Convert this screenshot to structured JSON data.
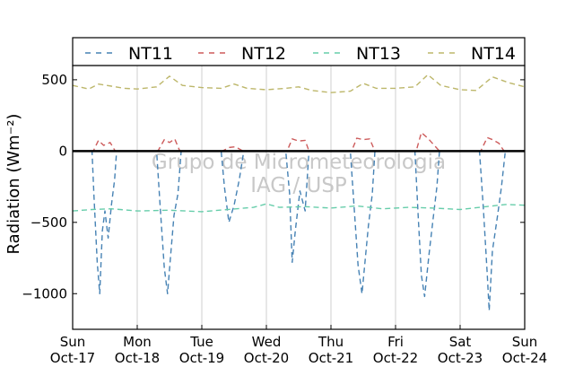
{
  "chart_data": {
    "type": "line",
    "ylabel": "Radiation (Wm⁻²)",
    "ylim": [
      -1250,
      600
    ],
    "yticks": [
      -1000,
      -500,
      0,
      500
    ],
    "ytick_labels": [
      "−1000",
      "−500",
      "0",
      "500"
    ],
    "xlim": [
      0,
      7
    ],
    "xticks": [
      {
        "day": "Sun",
        "date": "Oct-17"
      },
      {
        "day": "Mon",
        "date": "Oct-18"
      },
      {
        "day": "Tue",
        "date": "Oct-19"
      },
      {
        "day": "Wed",
        "date": "Oct-20"
      },
      {
        "day": "Thu",
        "date": "Oct-21"
      },
      {
        "day": "Fri",
        "date": "Oct-22"
      },
      {
        "day": "Sat",
        "date": "Oct-23"
      },
      {
        "day": "Sun",
        "date": "Oct-24"
      }
    ],
    "grid": "vertical",
    "legend_position": "top",
    "watermark": [
      "Grupo de Micrometeorologia",
      "IAG / USP"
    ],
    "series": [
      {
        "name": "NT11",
        "color": "#4682b4",
        "points": [
          [
            0,
            0
          ],
          [
            0.3,
            0
          ],
          [
            0.33,
            -320
          ],
          [
            0.38,
            -780
          ],
          [
            0.42,
            -1000
          ],
          [
            0.46,
            -560
          ],
          [
            0.5,
            -420
          ],
          [
            0.55,
            -610
          ],
          [
            0.6,
            -380
          ],
          [
            0.65,
            -200
          ],
          [
            0.68,
            0
          ],
          [
            1.3,
            0
          ],
          [
            1.36,
            -420
          ],
          [
            1.42,
            -820
          ],
          [
            1.47,
            -1000
          ],
          [
            1.52,
            -720
          ],
          [
            1.57,
            -450
          ],
          [
            1.63,
            -300
          ],
          [
            1.68,
            0
          ],
          [
            2.3,
            0
          ],
          [
            2.35,
            -250
          ],
          [
            2.42,
            -500
          ],
          [
            2.5,
            -380
          ],
          [
            2.58,
            -200
          ],
          [
            2.65,
            0
          ],
          [
            3.3,
            0
          ],
          [
            3.36,
            -300
          ],
          [
            3.4,
            -780
          ],
          [
            3.45,
            -550
          ],
          [
            3.52,
            -280
          ],
          [
            3.6,
            -420
          ],
          [
            3.66,
            0
          ],
          [
            4.3,
            0
          ],
          [
            4.36,
            -400
          ],
          [
            4.42,
            -800
          ],
          [
            4.48,
            -1000
          ],
          [
            4.53,
            -760
          ],
          [
            4.58,
            -520
          ],
          [
            4.64,
            -300
          ],
          [
            4.68,
            0
          ],
          [
            5.3,
            0
          ],
          [
            5.35,
            -450
          ],
          [
            5.4,
            -870
          ],
          [
            5.45,
            -1020
          ],
          [
            5.52,
            -720
          ],
          [
            5.58,
            -480
          ],
          [
            5.64,
            -250
          ],
          [
            5.68,
            0
          ],
          [
            6.3,
            0
          ],
          [
            6.36,
            -400
          ],
          [
            6.42,
            -860
          ],
          [
            6.45,
            -1120
          ],
          [
            6.5,
            -700
          ],
          [
            6.58,
            -450
          ],
          [
            6.64,
            -250
          ],
          [
            6.7,
            0
          ],
          [
            7,
            0
          ]
        ]
      },
      {
        "name": "NT12",
        "color": "#cd5c5c",
        "points": [
          [
            0,
            0
          ],
          [
            0.32,
            0
          ],
          [
            0.4,
            75
          ],
          [
            0.48,
            40
          ],
          [
            0.58,
            60
          ],
          [
            0.66,
            0
          ],
          [
            1.32,
            0
          ],
          [
            1.42,
            80
          ],
          [
            1.5,
            60
          ],
          [
            1.58,
            85
          ],
          [
            1.66,
            0
          ],
          [
            2.32,
            0
          ],
          [
            2.42,
            25
          ],
          [
            2.52,
            30
          ],
          [
            2.64,
            0
          ],
          [
            3.32,
            0
          ],
          [
            3.4,
            85
          ],
          [
            3.5,
            70
          ],
          [
            3.6,
            75
          ],
          [
            3.66,
            0
          ],
          [
            4.32,
            0
          ],
          [
            4.4,
            90
          ],
          [
            4.5,
            80
          ],
          [
            4.6,
            85
          ],
          [
            4.68,
            0
          ],
          [
            5.32,
            0
          ],
          [
            5.4,
            130
          ],
          [
            5.5,
            90
          ],
          [
            5.6,
            40
          ],
          [
            5.68,
            0
          ],
          [
            6.32,
            0
          ],
          [
            6.42,
            95
          ],
          [
            6.5,
            80
          ],
          [
            6.6,
            55
          ],
          [
            6.68,
            0
          ],
          [
            7,
            0
          ]
        ]
      },
      {
        "name": "NT13",
        "color": "#66cdaa",
        "points": [
          [
            0,
            -420
          ],
          [
            0.3,
            -410
          ],
          [
            0.6,
            -405
          ],
          [
            1,
            -420
          ],
          [
            1.5,
            -415
          ],
          [
            2,
            -425
          ],
          [
            2.4,
            -410
          ],
          [
            2.8,
            -395
          ],
          [
            3,
            -370
          ],
          [
            3.2,
            -395
          ],
          [
            3.6,
            -390
          ],
          [
            4,
            -400
          ],
          [
            4.4,
            -385
          ],
          [
            4.8,
            -405
          ],
          [
            5.2,
            -395
          ],
          [
            5.6,
            -400
          ],
          [
            6,
            -410
          ],
          [
            6.4,
            -390
          ],
          [
            6.7,
            -375
          ],
          [
            7,
            -380
          ]
        ]
      },
      {
        "name": "NT14",
        "color": "#bdb76b",
        "points": [
          [
            0,
            460
          ],
          [
            0.25,
            435
          ],
          [
            0.4,
            470
          ],
          [
            0.6,
            455
          ],
          [
            0.8,
            440
          ],
          [
            1,
            435
          ],
          [
            1.3,
            450
          ],
          [
            1.5,
            525
          ],
          [
            1.7,
            460
          ],
          [
            2,
            445
          ],
          [
            2.3,
            440
          ],
          [
            2.5,
            470
          ],
          [
            2.7,
            440
          ],
          [
            3,
            430
          ],
          [
            3.3,
            440
          ],
          [
            3.5,
            450
          ],
          [
            3.7,
            425
          ],
          [
            4,
            410
          ],
          [
            4.3,
            420
          ],
          [
            4.5,
            475
          ],
          [
            4.7,
            440
          ],
          [
            5,
            440
          ],
          [
            5.3,
            450
          ],
          [
            5.5,
            535
          ],
          [
            5.7,
            460
          ],
          [
            6,
            430
          ],
          [
            6.25,
            425
          ],
          [
            6.5,
            520
          ],
          [
            6.75,
            480
          ],
          [
            7,
            450
          ]
        ]
      }
    ]
  }
}
